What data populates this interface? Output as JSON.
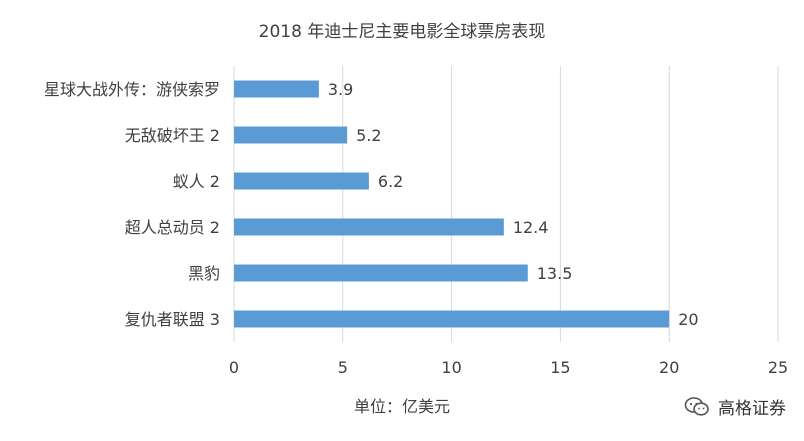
{
  "chart_data": {
    "type": "bar",
    "orientation": "horizontal",
    "title": "2018 年迪士尼主要电影全球票房表现",
    "xlabel": "单位：亿美元",
    "ylabel": "",
    "categories": [
      "星球大战外传：游侠索罗",
      "无敌破坏王 2",
      "蚁人 2",
      "超人总动员 2",
      "黑豹",
      "复仇者联盟 3"
    ],
    "values": [
      3.9,
      5.2,
      6.2,
      12.4,
      13.5,
      20
    ],
    "value_labels": [
      "3.9",
      "5.2",
      "6.2",
      "12.4",
      "13.5",
      "20"
    ],
    "xlim": [
      0,
      25
    ],
    "xticks": [
      "0",
      "5",
      "10",
      "15",
      "20",
      "25"
    ],
    "xtick_values": [
      0,
      5,
      10,
      15,
      20,
      25
    ],
    "grid": "vertical",
    "colors": {
      "bar": "#5b9bd5",
      "grid": "#d9d9d9",
      "text": "#404040"
    }
  },
  "watermark": {
    "text": "高格证券",
    "icon": "wechat-icon"
  }
}
